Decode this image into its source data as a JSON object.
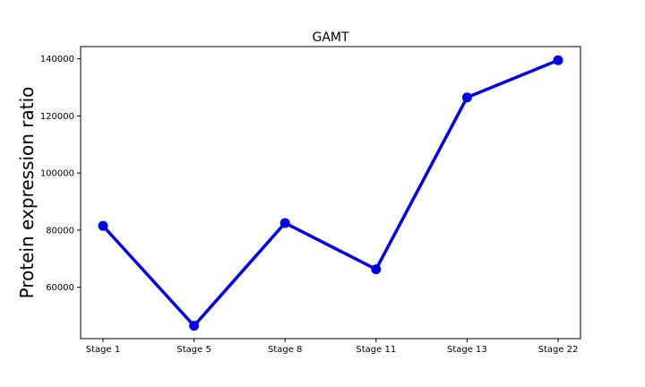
{
  "chart_data": {
    "type": "line",
    "title": "GAMT",
    "xlabel": "",
    "ylabel": "Protein expression ratio",
    "categories": [
      "Stage 1",
      "Stage 5",
      "Stage 8",
      "Stage 11",
      "Stage 13",
      "Stage 22"
    ],
    "series": [
      {
        "values": [
          81500,
          46500,
          82500,
          66300,
          126500,
          139500
        ],
        "color": "#0000ee"
      }
    ],
    "ylim": [
      42000,
      144300
    ],
    "yticks": [
      60000,
      80000,
      100000,
      120000,
      140000
    ],
    "grid": false,
    "legend": "none"
  }
}
